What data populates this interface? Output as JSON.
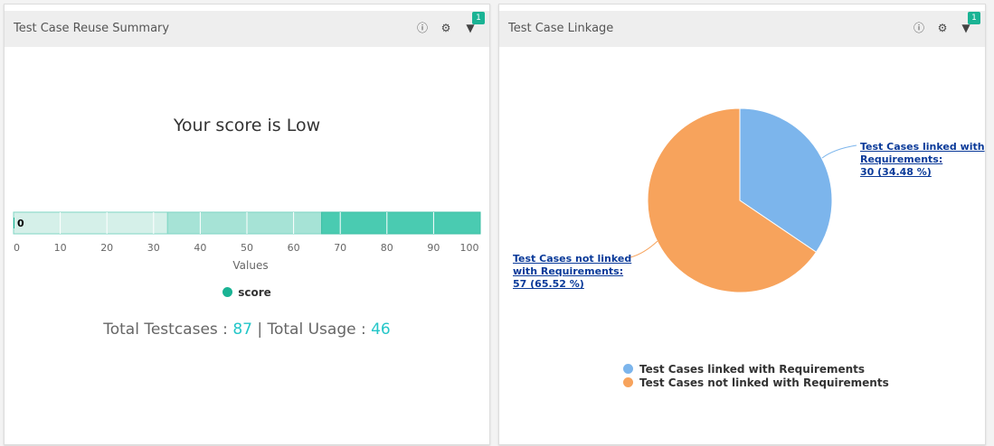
{
  "left_panel": {
    "title": "Test Case Reuse Summary",
    "filter_count": "1",
    "score_text": "Your score is Low",
    "totals": {
      "testcases_label": "Total Testcases : ",
      "testcases": "87",
      "sep": " | ",
      "usage_label": "Total Usage : ",
      "usage": "46"
    }
  },
  "right_panel": {
    "title": "Test Case Linkage",
    "filter_count": "1"
  },
  "chart_data": [
    {
      "type": "bar",
      "orientation": "horizontal",
      "series": [
        {
          "name": "score",
          "values": [
            0
          ]
        }
      ],
      "data_label": "0",
      "bands": [
        {
          "from": 0,
          "to": 33,
          "color": "#d5f0e9"
        },
        {
          "from": 33,
          "to": 66,
          "color": "#a6e3d6"
        },
        {
          "from": 66,
          "to": 100,
          "color": "#4acbb1"
        }
      ],
      "xlim": [
        0,
        100
      ],
      "xticks": [
        "0",
        "10",
        "20",
        "30",
        "40",
        "50",
        "60",
        "70",
        "80",
        "90",
        "100"
      ],
      "xlabel": "Values",
      "legend": "bottom",
      "series_color": "#1ab394"
    },
    {
      "type": "pie",
      "slices": [
        {
          "name": "Test Cases linked with Requirements",
          "value": 30,
          "percent": 34.48,
          "color": "#7cb5ec",
          "label_line1": "Test Cases linked with",
          "label_line2": "Requirements:",
          "label_line3": "30 (34.48 %)"
        },
        {
          "name": "Test Cases not linked with Requirements",
          "value": 57,
          "percent": 65.52,
          "color": "#f7a35c",
          "label_line1": "Test Cases not linked",
          "label_line2": "with Requirements:",
          "label_line3": "57 (65.52 %)"
        }
      ],
      "legend": "bottom"
    }
  ]
}
